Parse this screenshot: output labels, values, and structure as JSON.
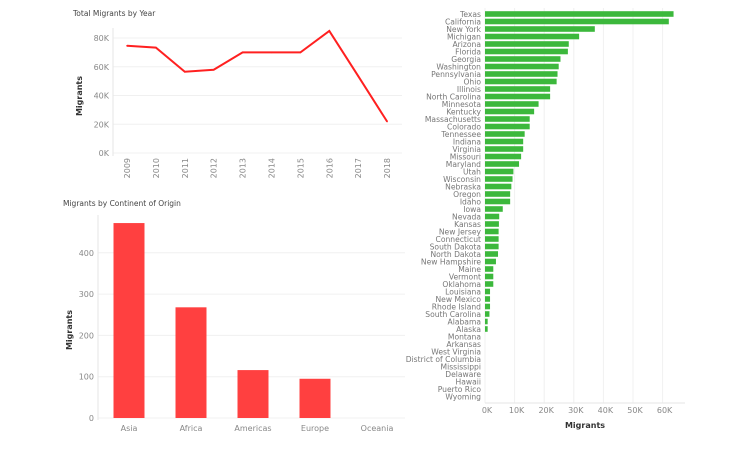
{
  "colors": {
    "line": "#ff2020",
    "continent_bar": "#ff4040",
    "state_bar": "#3cb83c"
  },
  "chart_data": [
    {
      "type": "line",
      "title": "Total Migrants by Year",
      "xlabel": "",
      "ylabel": "Migrants",
      "x": [
        "2009",
        "2010",
        "2011",
        "2012",
        "2013",
        "2014",
        "2015",
        "2016",
        "2017",
        "2018"
      ],
      "values": [
        74600,
        73300,
        56500,
        57900,
        70000,
        70000,
        70000,
        84900,
        53500,
        21900
      ],
      "yticks": [
        "0K",
        "20K",
        "40K",
        "60K",
        "80K"
      ],
      "ylim": [
        0,
        90000
      ],
      "grid": true
    },
    {
      "type": "bar",
      "title": "Migrants by Continent of Origin",
      "xlabel": "",
      "ylabel": "Migrants",
      "categories": [
        "Asia",
        "Africa",
        "Americas",
        "Europe",
        "Oceania"
      ],
      "values": [
        472,
        268,
        116,
        95,
        0
      ],
      "yticks": [
        "0",
        "100",
        "200",
        "300",
        "400"
      ],
      "ylim": [
        0,
        480
      ],
      "grid": true
    },
    {
      "type": "bar",
      "orientation": "horizontal",
      "title": "",
      "xlabel": "Migrants",
      "ylabel": "",
      "categories": [
        "Texas",
        "California",
        "New York",
        "Michigan",
        "Arizona",
        "Florida",
        "Georgia",
        "Washington",
        "Pennsylvania",
        "Ohio",
        "Illinois",
        "North Carolina",
        "Minnesota",
        "Kentucky",
        "Massachusetts",
        "Colorado",
        "Tennessee",
        "Indiana",
        "Virginia",
        "Missouri",
        "Maryland",
        "Utah",
        "Wisconsin",
        "Nebraska",
        "Oregon",
        "Idaho",
        "Iowa",
        "Nevada",
        "Kansas",
        "New Jersey",
        "Connecticut",
        "South Dakota",
        "North Dakota",
        "New Hampshire",
        "Maine",
        "Vermont",
        "Oklahoma",
        "Louisiana",
        "New Mexico",
        "Rhode Island",
        "South Carolina",
        "Alabama",
        "Alaska",
        "Montana",
        "Arkansas",
        "West Virginia",
        "District of Columbia",
        "Mississippi",
        "Delaware",
        "Hawaii",
        "Puerto Rico",
        "Wyoming"
      ],
      "values": [
        63700,
        62100,
        37100,
        31800,
        28300,
        28000,
        25500,
        24900,
        24500,
        24200,
        22000,
        22000,
        18100,
        16600,
        15100,
        15100,
        13400,
        12900,
        12900,
        12200,
        11500,
        9600,
        9300,
        8900,
        8500,
        8500,
        6000,
        4800,
        4700,
        4600,
        4600,
        4600,
        4400,
        3700,
        2800,
        2800,
        2800,
        1700,
        1700,
        1700,
        1500,
        900,
        900,
        0,
        0,
        0,
        0,
        0,
        0,
        0,
        0,
        0
      ],
      "xticks": [
        "0K",
        "10K",
        "20K",
        "30K",
        "40K",
        "50K",
        "60K"
      ],
      "xlim": [
        0,
        67000
      ],
      "grid": true
    }
  ]
}
